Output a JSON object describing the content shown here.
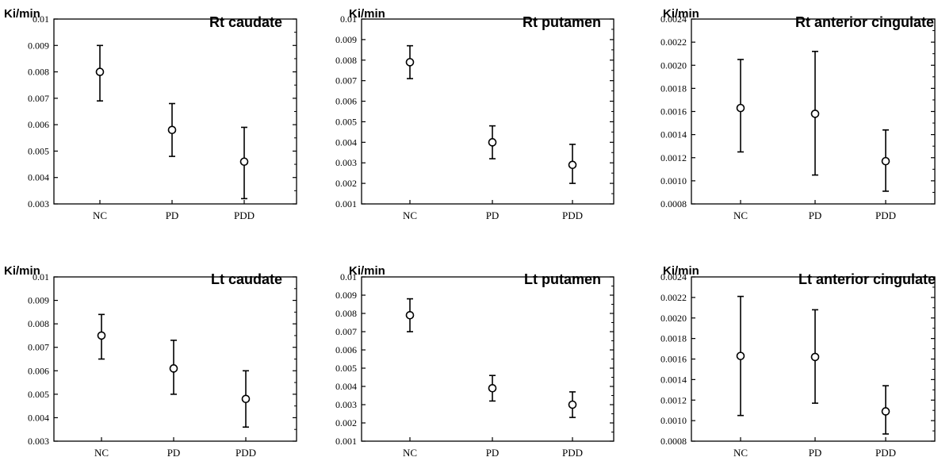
{
  "chart_data": [
    {
      "type": "scatter",
      "title": "Rt  caudate",
      "ylabel": "Ki/min",
      "categories": [
        "NC",
        "PD",
        "PDD"
      ],
      "ylim": [
        0.003,
        0.01
      ],
      "yticks": [
        "0.003",
        "0.004",
        "0.005",
        "0.006",
        "0.007",
        "0.008",
        "0.009",
        "0.01"
      ],
      "series": [
        {
          "values": [
            0.008,
            0.0058,
            0.0046
          ],
          "err_low": [
            0.0069,
            0.0048,
            0.0032
          ],
          "err_high": [
            0.009,
            0.0068,
            0.0059
          ]
        }
      ]
    },
    {
      "type": "scatter",
      "title": "Rt  putamen",
      "ylabel": "Ki/min",
      "categories": [
        "NC",
        "PD",
        "PDD"
      ],
      "ylim": [
        0.001,
        0.01
      ],
      "yticks": [
        "0.001",
        "0.002",
        "0.003",
        "0.004",
        "0.005",
        "0.006",
        "0.007",
        "0.008",
        "0.009",
        "0.01"
      ],
      "series": [
        {
          "values": [
            0.0079,
            0.004,
            0.0029
          ],
          "err_low": [
            0.0071,
            0.0032,
            0.002
          ],
          "err_high": [
            0.0087,
            0.0048,
            0.0039
          ]
        }
      ]
    },
    {
      "type": "scatter",
      "title": "Rt anterior cingulate",
      "ylabel": "Ki/min",
      "categories": [
        "NC",
        "PD",
        "PDD"
      ],
      "ylim": [
        0.0008,
        0.0024
      ],
      "yticks": [
        "0.0008",
        "0.0010",
        "0.0012",
        "0.0014",
        "0.0016",
        "0.0018",
        "0.0020",
        "0.0022",
        "0.0024"
      ],
      "series": [
        {
          "values": [
            0.00163,
            0.00158,
            0.00117
          ],
          "err_low": [
            0.00125,
            0.00105,
            0.00091
          ],
          "err_high": [
            0.00205,
            0.00212,
            0.00144
          ]
        }
      ]
    },
    {
      "type": "scatter",
      "title": "Lt  caudate",
      "ylabel": "Ki/min",
      "categories": [
        "NC",
        "PD",
        "PDD"
      ],
      "ylim": [
        0.003,
        0.01
      ],
      "yticks": [
        "0.003",
        "0.004",
        "0.005",
        "0.006",
        "0.007",
        "0.008",
        "0.009",
        "0.01"
      ],
      "series": [
        {
          "values": [
            0.0075,
            0.0061,
            0.0048
          ],
          "err_low": [
            0.0065,
            0.005,
            0.0036
          ],
          "err_high": [
            0.0084,
            0.0073,
            0.006
          ]
        }
      ]
    },
    {
      "type": "scatter",
      "title": "Lt  putamen",
      "ylabel": "Ki/min",
      "categories": [
        "NC",
        "PD",
        "PDD"
      ],
      "ylim": [
        0.001,
        0.01
      ],
      "yticks": [
        "0.001",
        "0.002",
        "0.003",
        "0.004",
        "0.005",
        "0.006",
        "0.007",
        "0.008",
        "0.009",
        "0.01"
      ],
      "series": [
        {
          "values": [
            0.0079,
            0.0039,
            0.003
          ],
          "err_low": [
            0.007,
            0.0032,
            0.0023
          ],
          "err_high": [
            0.0088,
            0.0046,
            0.0037
          ]
        }
      ]
    },
    {
      "type": "scatter",
      "title": "Lt  anterior cingulate",
      "ylabel": "Ki/min",
      "categories": [
        "NC",
        "PD",
        "PDD"
      ],
      "ylim": [
        0.0008,
        0.0024
      ],
      "yticks": [
        "0.0008",
        "0.0010",
        "0.0012",
        "0.0014",
        "0.0016",
        "0.0018",
        "0.0020",
        "0.0022",
        "0.0024"
      ],
      "series": [
        {
          "values": [
            0.00163,
            0.00162,
            0.00109
          ],
          "err_low": [
            0.00105,
            0.00117,
            0.00087
          ],
          "err_high": [
            0.00221,
            0.00208,
            0.00134
          ]
        }
      ]
    }
  ]
}
